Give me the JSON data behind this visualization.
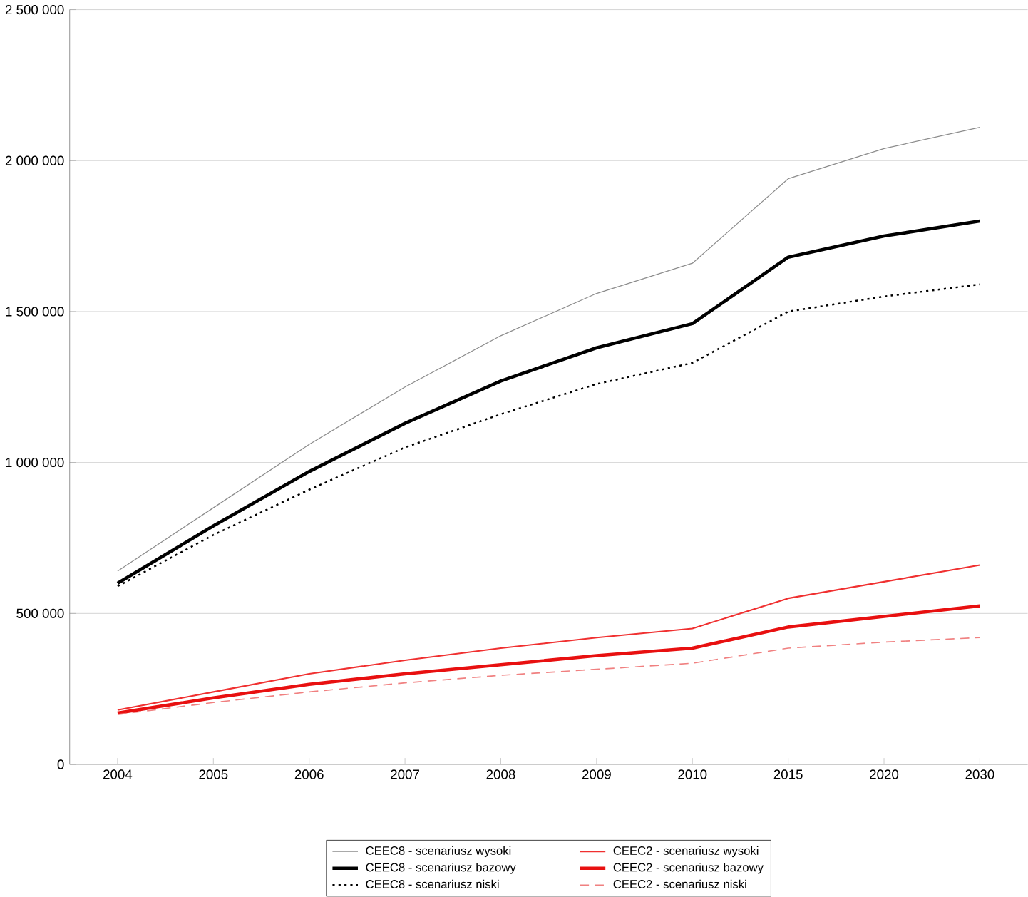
{
  "chart_data": {
    "type": "line",
    "categories": [
      "2004",
      "2005",
      "2006",
      "2007",
      "2008",
      "2009",
      "2010",
      "2015",
      "2020",
      "2030"
    ],
    "ylim": [
      0,
      2500000
    ],
    "yticks": [
      {
        "value": 0,
        "label": "0"
      },
      {
        "value": 500000,
        "label": "500 000"
      },
      {
        "value": 1000000,
        "label": "1 000 000"
      },
      {
        "value": 1500000,
        "label": "1 500 000"
      },
      {
        "value": 2000000,
        "label": "2 000 000"
      },
      {
        "value": 2500000,
        "label": "2 500 000"
      }
    ],
    "grid": "y",
    "legend": "bottom",
    "marker": "none",
    "series": [
      {
        "name": "CEEC8 - scenariusz wysoki",
        "color": "#8c8c8c",
        "line_style": "solid",
        "values": [
          640000,
          850000,
          1060000,
          1250000,
          1420000,
          1560000,
          1660000,
          1940000,
          2040000,
          2110000
        ]
      },
      {
        "name": "CEEC2 - scenariusz wysoki",
        "color": "#f03030",
        "line_style": "solid",
        "values": [
          180000,
          240000,
          300000,
          345000,
          385000,
          420000,
          450000,
          550000,
          605000,
          660000
        ]
      },
      {
        "name": "CEEC8 - scenariusz bazowy",
        "color": "#000000",
        "line_style": "solid",
        "values": [
          600000,
          790000,
          970000,
          1130000,
          1270000,
          1380000,
          1460000,
          1680000,
          1750000,
          1800000
        ]
      },
      {
        "name": "CEEC2 - scenariusz bazowy",
        "color": "#e81010",
        "line_style": "solid",
        "values": [
          170000,
          220000,
          265000,
          300000,
          330000,
          360000,
          385000,
          455000,
          490000,
          525000
        ]
      },
      {
        "name": "CEEC8 - scenariusz niski",
        "color": "#000000",
        "line_style": "dotted",
        "values": [
          590000,
          760000,
          910000,
          1050000,
          1160000,
          1260000,
          1330000,
          1500000,
          1550000,
          1590000
        ]
      },
      {
        "name": "CEEC2 - scenariusz niski",
        "color": "#f08080",
        "line_style": "dashed",
        "values": [
          165000,
          205000,
          240000,
          270000,
          295000,
          315000,
          335000,
          385000,
          405000,
          420000
        ]
      }
    ]
  }
}
